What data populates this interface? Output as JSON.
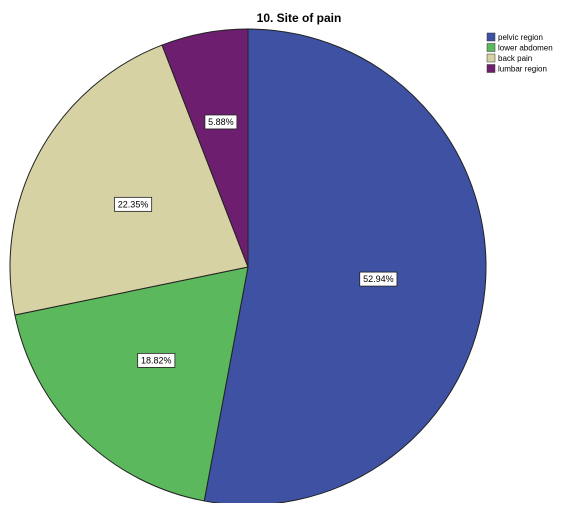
{
  "chart_data": {
    "type": "pie",
    "title": "10. Site of pain",
    "categories": [
      "pelvic region",
      "lower abdomen",
      "back pain",
      "lumbar region"
    ],
    "values": [
      52.94,
      18.82,
      22.35,
      5.88
    ],
    "value_labels": [
      "52.94%",
      "18.82%",
      "22.35%",
      "5.88%"
    ],
    "colors": [
      "#3e51a3",
      "#5cb85c",
      "#d6d2a3",
      "#6e1e6e"
    ],
    "legend_position": "top-right",
    "start_angle": "top",
    "direction": "clockwise"
  }
}
